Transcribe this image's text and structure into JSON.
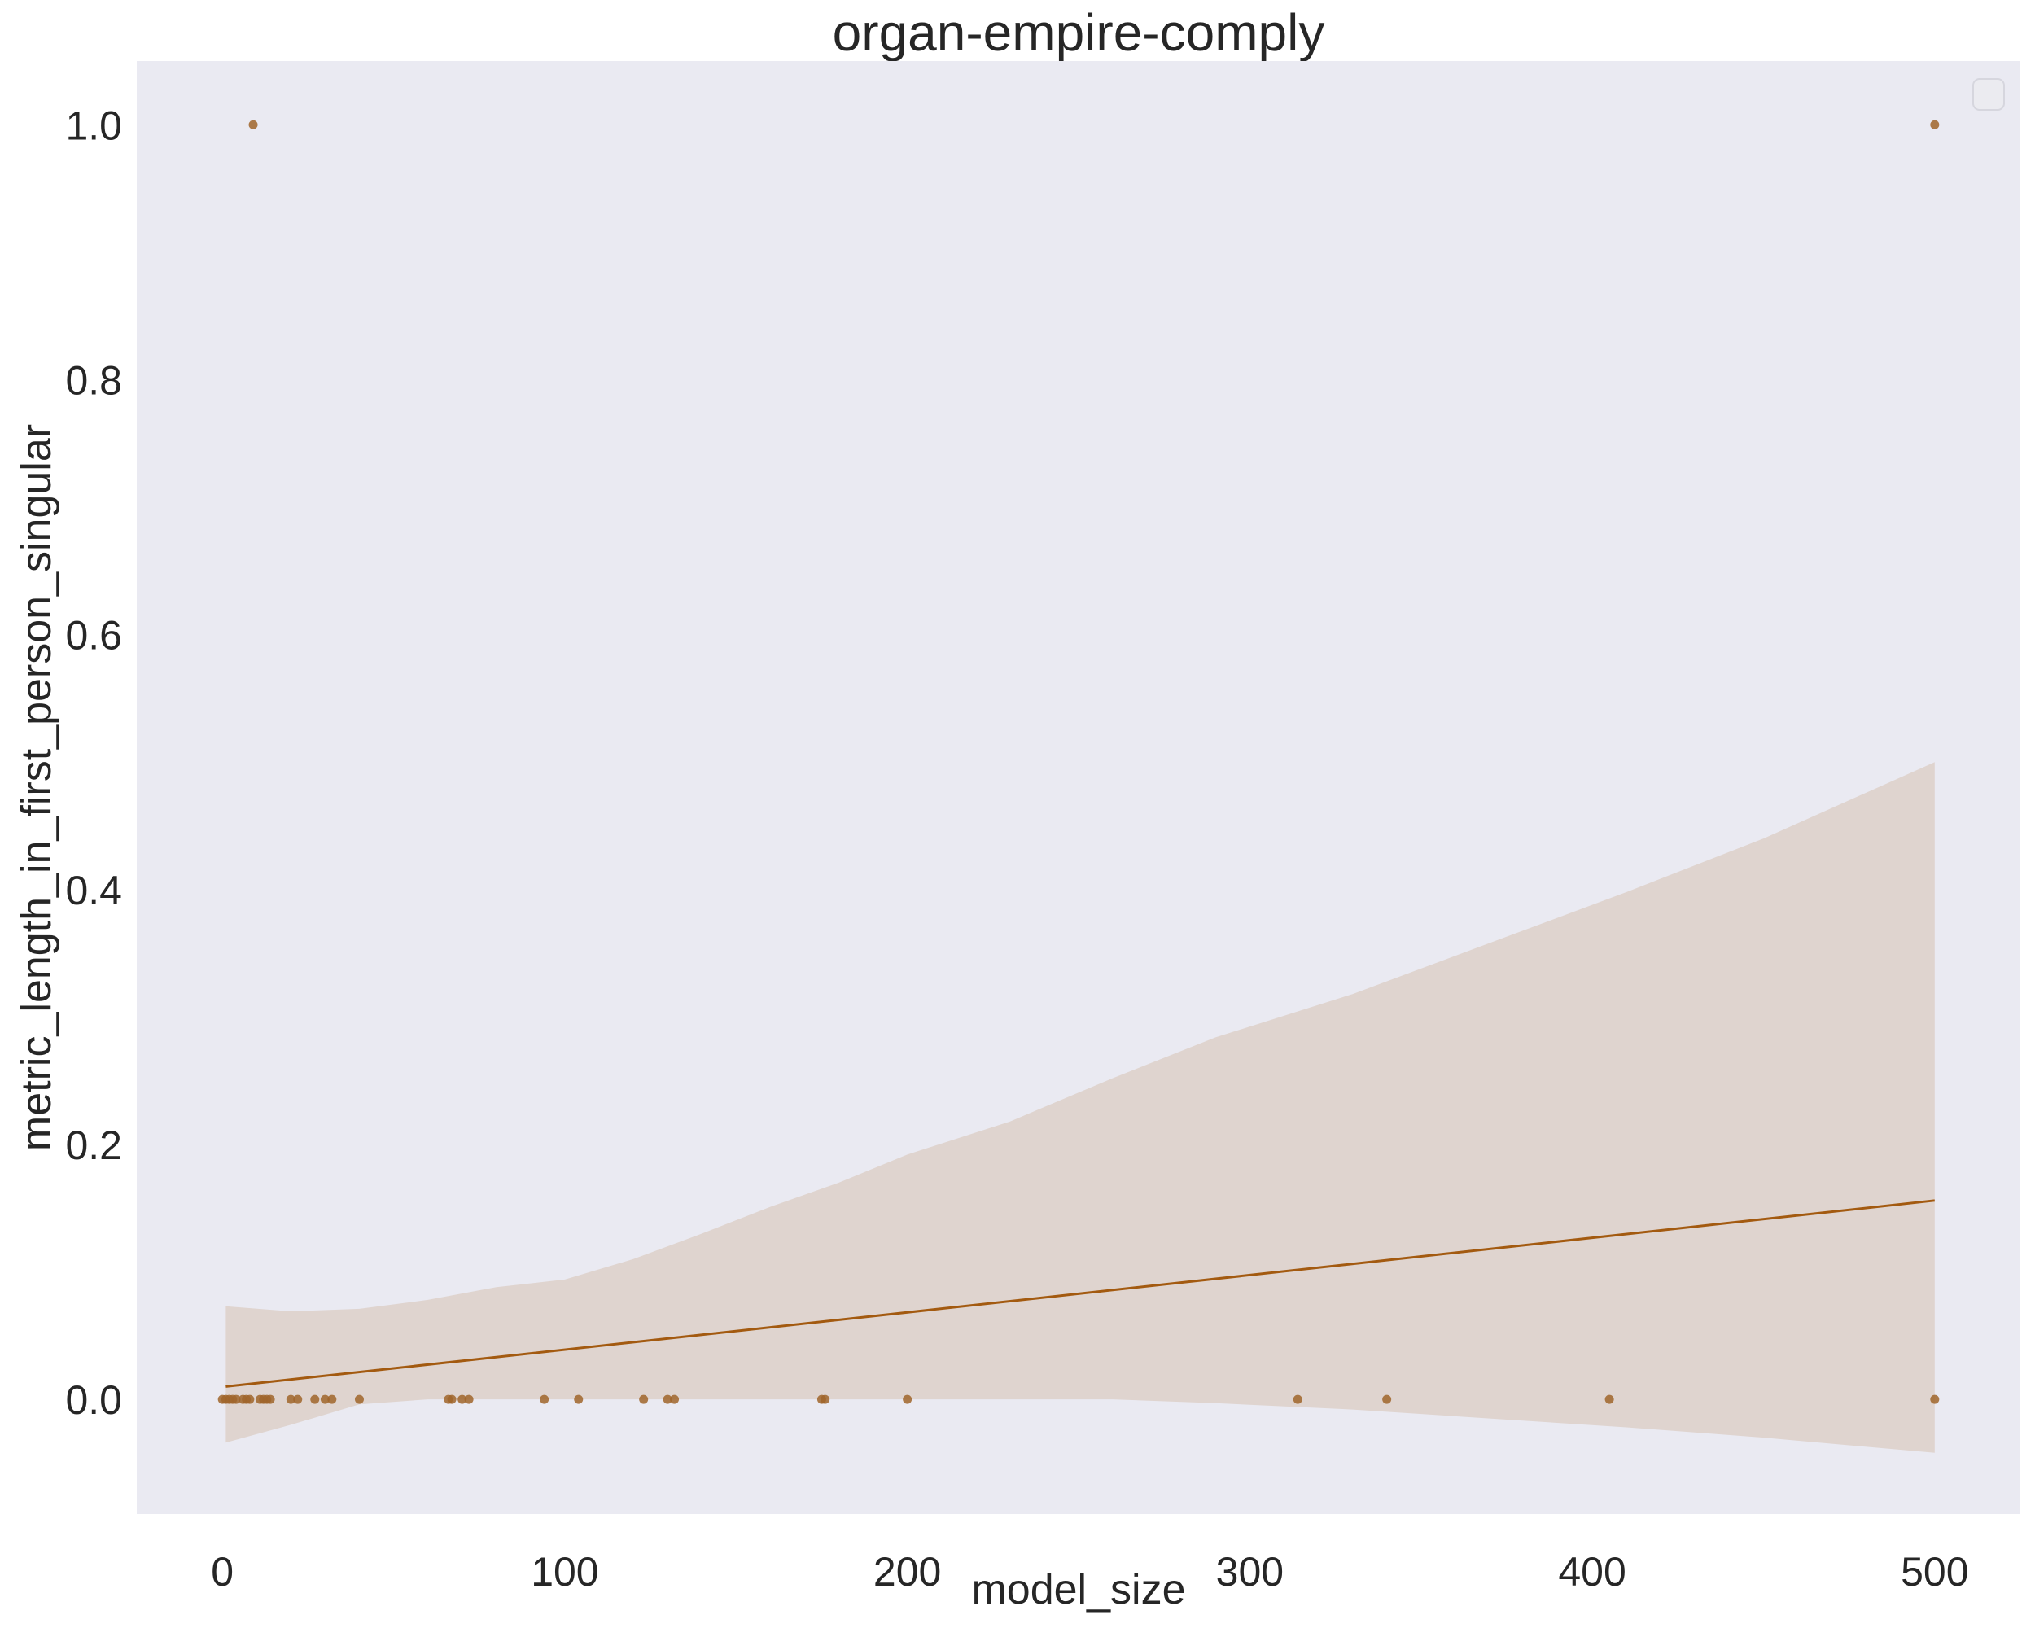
{
  "chart_data": {
    "type": "scatter",
    "title": "organ-empire-comply",
    "xlabel": "model_size",
    "ylabel": "metric_length_in_first_person_singular",
    "xlim": [
      -25,
      525
    ],
    "ylim": [
      -0.09,
      1.05
    ],
    "x_ticks": [
      0,
      100,
      200,
      300,
      400,
      500
    ],
    "x_tick_labels": [
      "0",
      "100",
      "200",
      "300",
      "400",
      "500"
    ],
    "y_ticks": [
      0.0,
      0.2,
      0.4,
      0.6,
      0.8,
      1.0
    ],
    "y_tick_labels": [
      "0.0",
      "0.2",
      "0.4",
      "0.6",
      "0.8",
      "1.0"
    ],
    "grid": false,
    "legend": {
      "position": "top-right",
      "entries": []
    },
    "colors": {
      "background": "#eaeaf2",
      "points": "#a0652a",
      "line": "#a35a10",
      "band": "#dfd4cf"
    },
    "points": [
      {
        "x": 0,
        "y": 0
      },
      {
        "x": 1,
        "y": 0
      },
      {
        "x": 2,
        "y": 0
      },
      {
        "x": 3,
        "y": 0
      },
      {
        "x": 4,
        "y": 0
      },
      {
        "x": 6,
        "y": 0
      },
      {
        "x": 7,
        "y": 0
      },
      {
        "x": 8,
        "y": 0
      },
      {
        "x": 9,
        "y": 1
      },
      {
        "x": 11,
        "y": 0
      },
      {
        "x": 12,
        "y": 0
      },
      {
        "x": 13,
        "y": 0
      },
      {
        "x": 14,
        "y": 0
      },
      {
        "x": 20,
        "y": 0
      },
      {
        "x": 22,
        "y": 0
      },
      {
        "x": 27,
        "y": 0
      },
      {
        "x": 30,
        "y": 0
      },
      {
        "x": 32,
        "y": 0
      },
      {
        "x": 40,
        "y": 0
      },
      {
        "x": 66,
        "y": 0
      },
      {
        "x": 67,
        "y": 0
      },
      {
        "x": 70,
        "y": 0
      },
      {
        "x": 72,
        "y": 0
      },
      {
        "x": 94,
        "y": 0
      },
      {
        "x": 104,
        "y": 0
      },
      {
        "x": 123,
        "y": 0
      },
      {
        "x": 130,
        "y": 0
      },
      {
        "x": 132,
        "y": 0
      },
      {
        "x": 175,
        "y": 0
      },
      {
        "x": 176,
        "y": 0
      },
      {
        "x": 200,
        "y": 0
      },
      {
        "x": 314,
        "y": 0
      },
      {
        "x": 340,
        "y": 0
      },
      {
        "x": 405,
        "y": 0
      },
      {
        "x": 500,
        "y": 0
      },
      {
        "x": 500,
        "y": 1
      }
    ],
    "regression": {
      "x": [
        1,
        500
      ],
      "y": [
        0.01,
        0.156
      ]
    },
    "ci_band": {
      "x": [
        1,
        20,
        40,
        60,
        80,
        100,
        120,
        140,
        160,
        180,
        200,
        230,
        260,
        290,
        330,
        370,
        410,
        450,
        500
      ],
      "upper": [
        0.073,
        0.069,
        0.071,
        0.078,
        0.088,
        0.094,
        0.11,
        0.13,
        0.151,
        0.17,
        0.192,
        0.218,
        0.252,
        0.284,
        0.318,
        0.358,
        0.398,
        0.44,
        0.5
      ],
      "lower": [
        -0.034,
        -0.02,
        -0.004,
        0.0,
        0.0,
        0.0,
        0.0,
        0.0,
        0.0,
        0.0,
        0.0,
        0.0,
        0.0,
        -0.003,
        -0.008,
        -0.015,
        -0.022,
        -0.03,
        -0.042
      ]
    }
  }
}
